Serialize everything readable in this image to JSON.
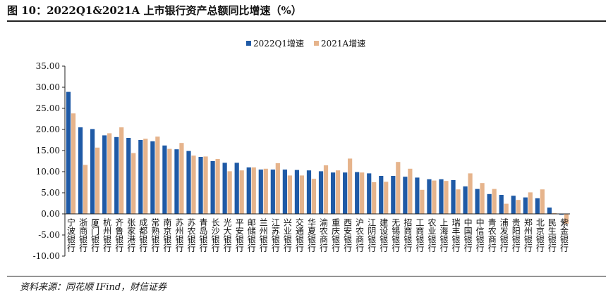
{
  "title": "图 10：2022Q1&2021A 上市银行资产总额同比增速（%）",
  "source": "资料来源：同花顺 IFind，财信证券",
  "colors": {
    "series1": "#1f5aa6",
    "series2": "#e6b48c",
    "axis": "#222222"
  },
  "chart_data": {
    "type": "bar",
    "categories": [
      "宁波银行",
      "浙商银行",
      "厦门银行",
      "杭州银行",
      "齐鲁银行",
      "张家港行",
      "成都银行",
      "常熟银行",
      "南京银行",
      "苏州银行",
      "苏农银行",
      "青岛银行",
      "长沙银行",
      "光大银行",
      "平安银行",
      "邮储银行",
      "兰州银行",
      "江苏银行",
      "兴业银行",
      "交通银行",
      "华夏银行",
      "渝农商行",
      "重庆银行",
      "西安银行",
      "沪农商行",
      "江阴银行",
      "建设银行",
      "无锡银行",
      "招商银行",
      "工商银行",
      "农业银行",
      "上海银行",
      "瑞丰银行",
      "中国银行",
      "中信银行",
      "青农商行",
      "浦发银行",
      "贵阳银行",
      "郑州银行",
      "北京银行",
      "民生银行",
      "紫金银行"
    ],
    "series": [
      {
        "name": "2022Q1增速",
        "values": [
          28.9,
          20.5,
          20.1,
          18.6,
          18.2,
          18.0,
          17.5,
          17.2,
          16.2,
          15.3,
          14.9,
          13.5,
          12.5,
          12.1,
          12.1,
          11.0,
          10.5,
          10.5,
          10.5,
          10.4,
          10.3,
          10.1,
          9.8,
          9.8,
          9.9,
          9.6,
          9.0,
          9.0,
          8.8,
          8.6,
          8.2,
          8.2,
          8.0,
          6.5,
          5.9,
          4.7,
          4.5,
          4.3,
          3.9,
          3.7,
          1.5,
          -0.2
        ]
      },
      {
        "name": "2021A增速",
        "values": [
          23.8,
          11.6,
          15.7,
          19.1,
          20.5,
          14.4,
          17.8,
          18.3,
          15.4,
          16.8,
          13.8,
          13.6,
          13.0,
          10.1,
          10.3,
          11.0,
          10.7,
          12.0,
          9.1,
          9.1,
          8.3,
          11.5,
          10.3,
          13.1,
          9.8,
          7.5,
          7.6,
          12.3,
          10.7,
          5.7,
          7.9,
          7.8,
          5.8,
          9.6,
          7.3,
          5.9,
          2.4,
          3.3,
          5.1,
          5.8,
          0.2,
          -2.3
        ]
      }
    ],
    "yticks": [
      "35.00",
      "30.00",
      "25.00",
      "20.00",
      "15.00",
      "10.00",
      "5.00",
      "0.00",
      "-5.00",
      "-10.00"
    ],
    "ylim": [
      -10,
      35
    ],
    "legend_position": "top-center",
    "grid": false
  }
}
